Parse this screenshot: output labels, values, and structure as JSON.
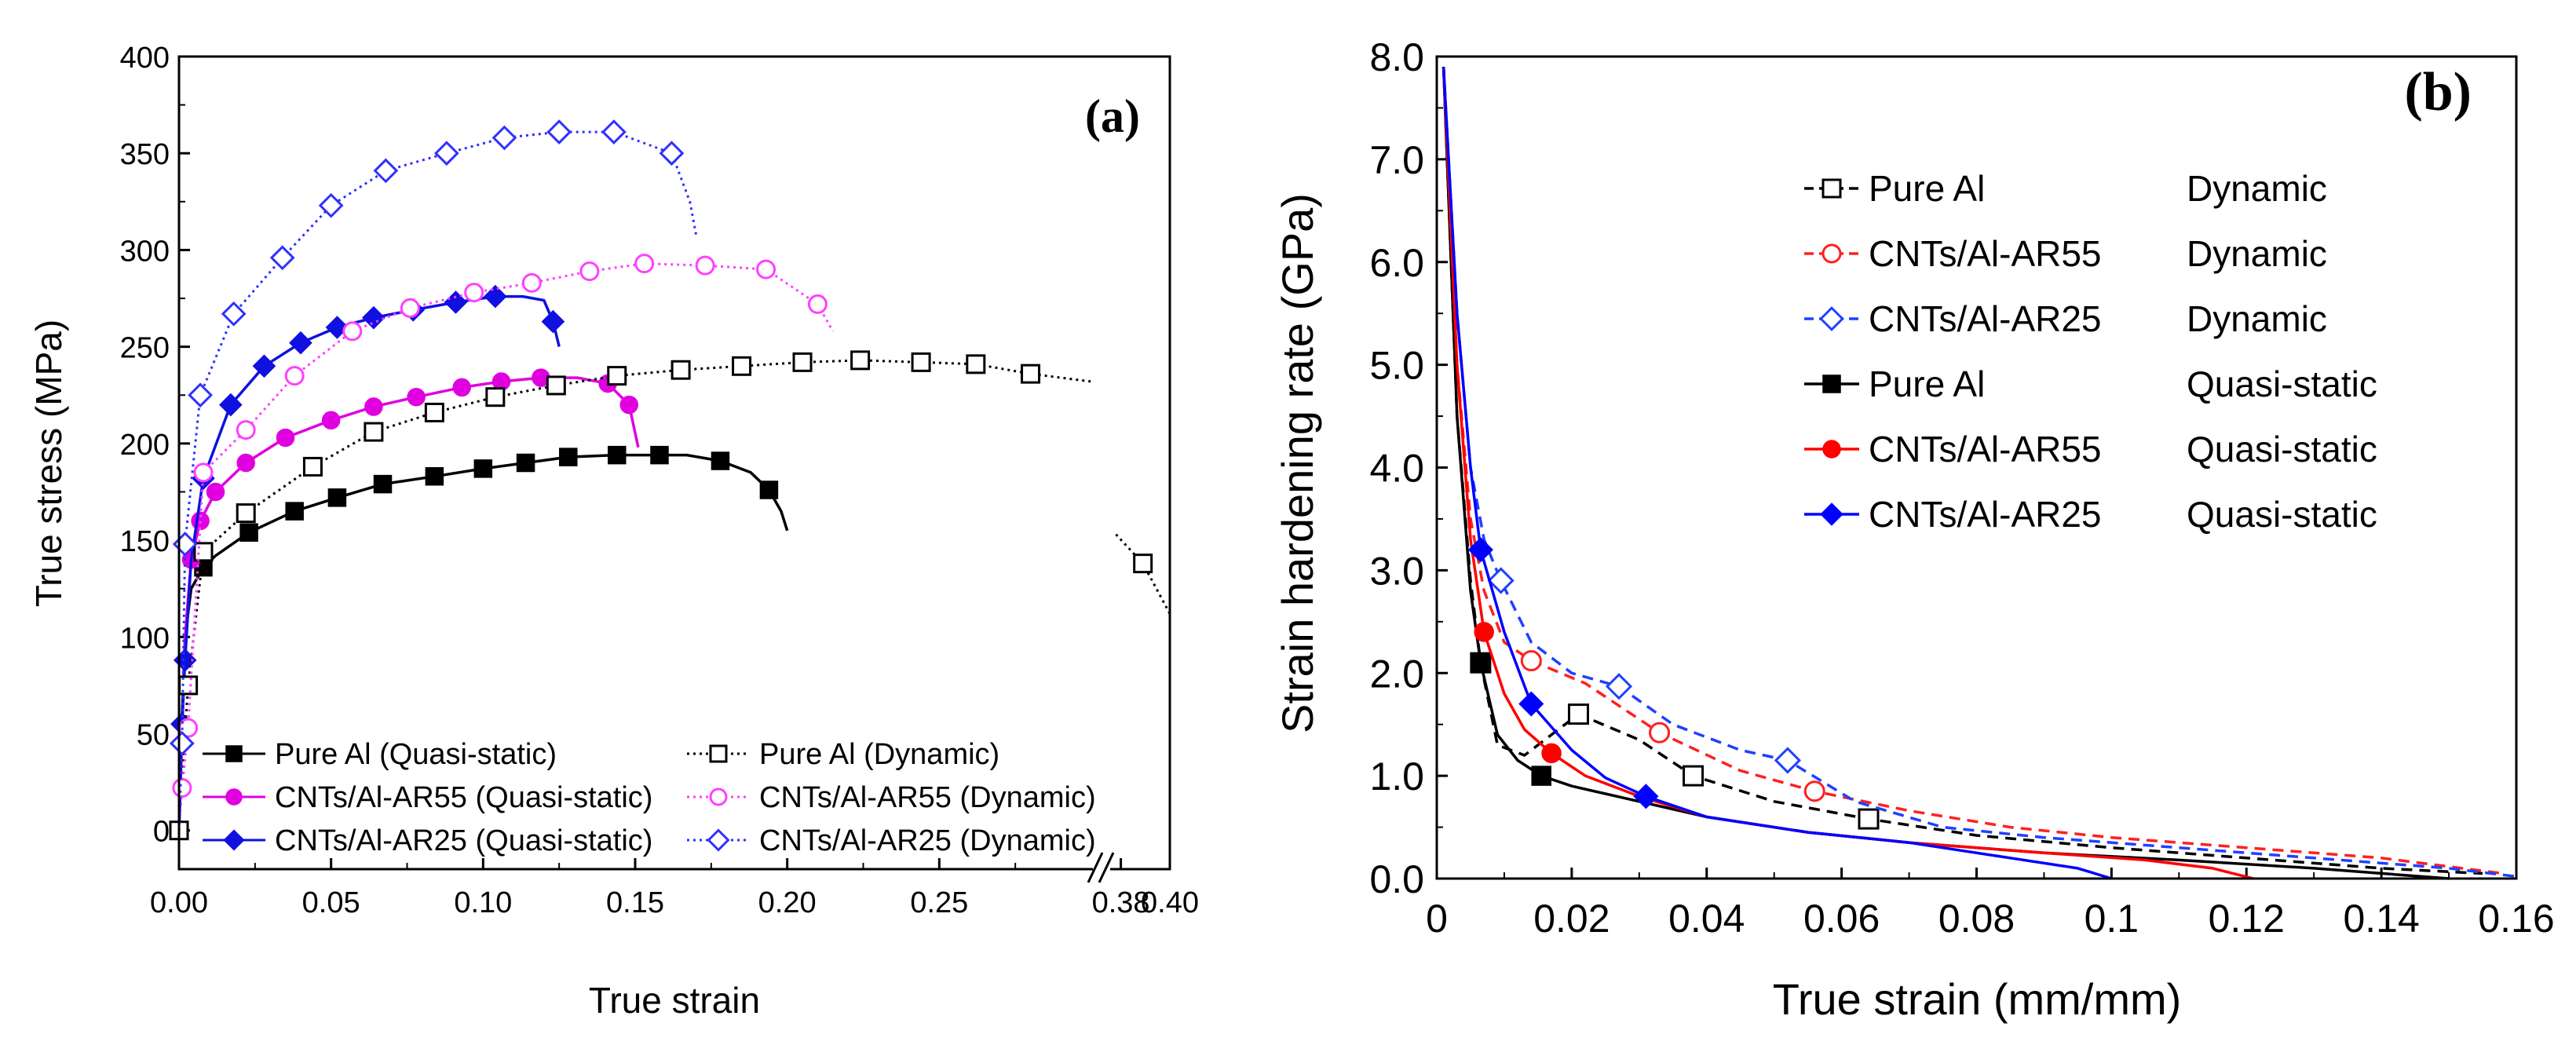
{
  "chart_data": [
    {
      "type": "line",
      "panel_label": "(a)",
      "xlabel": "True strain",
      "ylabel": "True stress (MPa)",
      "xlim": [
        0.0,
        0.4
      ],
      "ylim": [
        -20,
        400
      ],
      "x_ticks": [
        "0.00",
        "0.05",
        "0.10",
        "0.15",
        "0.20",
        "0.25",
        "0.38",
        "0.40"
      ],
      "y_ticks": [
        "0",
        "50",
        "100",
        "150",
        "200",
        "250",
        "300",
        "350",
        "400"
      ],
      "axis_break": "0.30-0.375",
      "legend_position": "bottom",
      "series": [
        {
          "name": "Pure Al (Quasi-static)",
          "color": "#000000",
          "marker": "filled-square",
          "dashed": false,
          "x": [
            0.0,
            0.001,
            0.002,
            0.004,
            0.008,
            0.012,
            0.023,
            0.038,
            0.052,
            0.067,
            0.084,
            0.1,
            0.114,
            0.128,
            0.144,
            0.158,
            0.167,
            0.178,
            0.188,
            0.194,
            0.198,
            0.2
          ],
          "y": [
            0,
            60,
            100,
            125,
            136,
            142,
            154,
            165,
            172,
            179,
            183,
            187,
            190,
            193,
            194,
            194,
            194,
            191,
            185,
            176,
            165,
            155
          ],
          "marker_indices": [
            4,
            6,
            7,
            8,
            9,
            10,
            11,
            12,
            13,
            14,
            15,
            17,
            19
          ]
        },
        {
          "name": "CNTs/Al-AR55 (Quasi-static)",
          "color": "#e000e0",
          "marker": "filled-circle",
          "dashed": false,
          "x": [
            0.0,
            0.001,
            0.002,
            0.004,
            0.007,
            0.012,
            0.022,
            0.035,
            0.05,
            0.064,
            0.078,
            0.093,
            0.106,
            0.119,
            0.131,
            0.141,
            0.148,
            0.151
          ],
          "y": [
            0,
            50,
            100,
            140,
            160,
            175,
            190,
            203,
            212,
            219,
            224,
            229,
            232,
            234,
            234,
            231,
            220,
            198
          ],
          "marker_indices": [
            3,
            4,
            5,
            6,
            7,
            8,
            9,
            10,
            11,
            12,
            13,
            15,
            16
          ]
        },
        {
          "name": "CNTs/Al-AR25 (Quasi-static)",
          "color": "#1010e0",
          "marker": "filled-diamond",
          "dashed": false,
          "x": [
            0.0,
            0.001,
            0.002,
            0.004,
            0.008,
            0.017,
            0.028,
            0.04,
            0.052,
            0.064,
            0.077,
            0.091,
            0.104,
            0.113,
            0.12,
            0.123,
            0.125
          ],
          "y": [
            0,
            55,
            88,
            140,
            182,
            220,
            240,
            252,
            260,
            265,
            269,
            273,
            276,
            276,
            274,
            263,
            250
          ],
          "marker_indices": [
            1,
            2,
            4,
            5,
            6,
            7,
            8,
            9,
            10,
            11,
            12,
            15
          ]
        },
        {
          "name": "Pure Al (Dynamic)",
          "color": "#000000",
          "marker": "open-square",
          "dashed": true,
          "x": [
            0.0,
            0.001,
            0.003,
            0.008,
            0.022,
            0.044,
            0.064,
            0.084,
            0.104,
            0.124,
            0.144,
            0.165,
            0.185,
            0.205,
            0.224,
            0.244,
            0.262,
            0.28,
            0.3
          ],
          "y": [
            0,
            30,
            75,
            144,
            164,
            188,
            206,
            216,
            224,
            230,
            235,
            238,
            240,
            242,
            243,
            242,
            241,
            236,
            232
          ],
          "marker_indices": [
            0,
            2,
            3,
            4,
            5,
            6,
            7,
            8,
            9,
            10,
            11,
            12,
            13,
            14,
            15,
            16,
            17
          ]
        },
        {
          "name": "Pure Al (Dynamic) after break",
          "color": "#000000",
          "marker": "open-square",
          "dashed": true,
          "x": [
            0.378,
            0.389,
            0.4
          ],
          "y": [
            153,
            138,
            112
          ],
          "marker_indices": [
            1
          ]
        },
        {
          "name": "CNTs/Al-AR55 (Dynamic)",
          "color": "#ff40ff",
          "marker": "open-circle",
          "dashed": true,
          "x": [
            0.0,
            0.001,
            0.003,
            0.008,
            0.022,
            0.038,
            0.057,
            0.076,
            0.097,
            0.116,
            0.135,
            0.153,
            0.173,
            0.193,
            0.21,
            0.215
          ],
          "y": [
            0,
            22,
            53,
            185,
            207,
            235,
            258,
            270,
            278,
            283,
            289,
            293,
            292,
            290,
            272,
            258
          ],
          "marker_indices": [
            1,
            2,
            3,
            4,
            5,
            6,
            7,
            8,
            9,
            10,
            11,
            12,
            13,
            14
          ]
        },
        {
          "name": "CNTs/Al-AR25 (Dynamic)",
          "color": "#3030ff",
          "marker": "open-diamond",
          "dashed": true,
          "x": [
            0.0,
            0.001,
            0.002,
            0.007,
            0.018,
            0.034,
            0.05,
            0.068,
            0.088,
            0.107,
            0.125,
            0.143,
            0.162,
            0.168,
            0.17
          ],
          "y": [
            0,
            45,
            148,
            225,
            267,
            296,
            323,
            341,
            350,
            358,
            361,
            361,
            350,
            325,
            308
          ],
          "marker_indices": [
            1,
            2,
            3,
            4,
            5,
            6,
            7,
            8,
            9,
            10,
            11,
            12
          ]
        }
      ]
    },
    {
      "type": "line",
      "panel_label": "(b)",
      "xlabel": "True strain (mm/mm)",
      "ylabel": "Strain hardening rate (GPa)",
      "xlim": [
        0,
        0.16
      ],
      "ylim": [
        0,
        8.0
      ],
      "x_ticks": [
        "0",
        "0.02",
        "0.04",
        "0.06",
        "0.08",
        "0.1",
        "0.12",
        "0.14",
        "0.16"
      ],
      "y_ticks": [
        "0.0",
        "1.0",
        "2.0",
        "3.0",
        "4.0",
        "5.0",
        "6.0",
        "7.0",
        "8.0"
      ],
      "legend_position": "top-right",
      "series": [
        {
          "name": "Pure Al",
          "mode": "Dynamic",
          "color": "#000000",
          "marker": "open-square",
          "dashed": true,
          "x": [
            0.001,
            0.003,
            0.005,
            0.0065,
            0.009,
            0.013,
            0.021,
            0.03,
            0.038,
            0.05,
            0.064,
            0.08,
            0.1,
            0.12,
            0.14,
            0.155
          ],
          "y": [
            7.9,
            4.5,
            2.9,
            2.1,
            1.3,
            1.2,
            1.6,
            1.35,
            1.0,
            0.75,
            0.58,
            0.42,
            0.3,
            0.2,
            0.1,
            0.05
          ],
          "marker_indices": [
            3,
            6,
            8,
            10
          ]
        },
        {
          "name": "CNTs/Al-AR55",
          "mode": "Dynamic",
          "color": "#ff2020",
          "marker": "open-circle",
          "dashed": true,
          "x": [
            0.001,
            0.003,
            0.005,
            0.007,
            0.01,
            0.014,
            0.022,
            0.033,
            0.045,
            0.056,
            0.07,
            0.085,
            0.1,
            0.12,
            0.14,
            0.158
          ],
          "y": [
            7.9,
            5.0,
            3.5,
            2.8,
            2.3,
            2.12,
            1.9,
            1.42,
            1.05,
            0.85,
            0.66,
            0.5,
            0.4,
            0.3,
            0.2,
            0.05
          ],
          "marker_indices": [
            5,
            7,
            9
          ]
        },
        {
          "name": "CNTs/Al-AR25",
          "mode": "Dynamic",
          "color": "#2040ff",
          "marker": "open-diamond",
          "dashed": true,
          "x": [
            0.001,
            0.003,
            0.005,
            0.007,
            0.0095,
            0.014,
            0.02,
            0.027,
            0.035,
            0.045,
            0.052,
            0.062,
            0.075,
            0.09,
            0.11,
            0.13,
            0.15,
            0.16
          ],
          "y": [
            7.9,
            5.5,
            4.0,
            3.3,
            2.9,
            2.3,
            2.0,
            1.87,
            1.5,
            1.25,
            1.15,
            0.75,
            0.5,
            0.4,
            0.3,
            0.2,
            0.1,
            0.02
          ],
          "marker_indices": [
            4,
            7,
            10
          ]
        },
        {
          "name": "Pure Al",
          "mode": "Quasi-static",
          "color": "#000000",
          "marker": "filled-square",
          "dashed": false,
          "x": [
            0.001,
            0.003,
            0.005,
            0.0065,
            0.009,
            0.012,
            0.0155,
            0.02,
            0.03,
            0.04,
            0.055,
            0.07,
            0.09,
            0.11,
            0.13,
            0.15
          ],
          "y": [
            7.9,
            4.5,
            2.8,
            2.1,
            1.4,
            1.15,
            1.0,
            0.9,
            0.75,
            0.6,
            0.45,
            0.35,
            0.25,
            0.18,
            0.1,
            0.0
          ],
          "marker_indices": [
            3,
            6
          ]
        },
        {
          "name": "CNTs/Al-AR55",
          "mode": "Quasi-static",
          "color": "#ff0000",
          "marker": "filled-circle",
          "dashed": false,
          "x": [
            0.001,
            0.003,
            0.005,
            0.007,
            0.01,
            0.013,
            0.017,
            0.022,
            0.03,
            0.04,
            0.055,
            0.07,
            0.09,
            0.105,
            0.115,
            0.121
          ],
          "y": [
            7.9,
            5.0,
            3.3,
            2.4,
            1.8,
            1.45,
            1.22,
            1.0,
            0.8,
            0.6,
            0.45,
            0.35,
            0.25,
            0.18,
            0.1,
            0.0
          ],
          "marker_indices": [
            3,
            6
          ]
        },
        {
          "name": "CNTs/Al-AR25",
          "mode": "Quasi-static",
          "color": "#0000ff",
          "marker": "filled-diamond",
          "dashed": false,
          "x": [
            0.001,
            0.003,
            0.005,
            0.0065,
            0.01,
            0.014,
            0.02,
            0.025,
            0.031,
            0.04,
            0.055,
            0.07,
            0.085,
            0.095,
            0.1
          ],
          "y": [
            7.9,
            5.5,
            4.0,
            3.2,
            2.4,
            1.7,
            1.25,
            0.98,
            0.8,
            0.6,
            0.45,
            0.35,
            0.2,
            0.1,
            0.0
          ],
          "marker_indices": [
            3,
            5,
            8
          ]
        }
      ]
    }
  ]
}
